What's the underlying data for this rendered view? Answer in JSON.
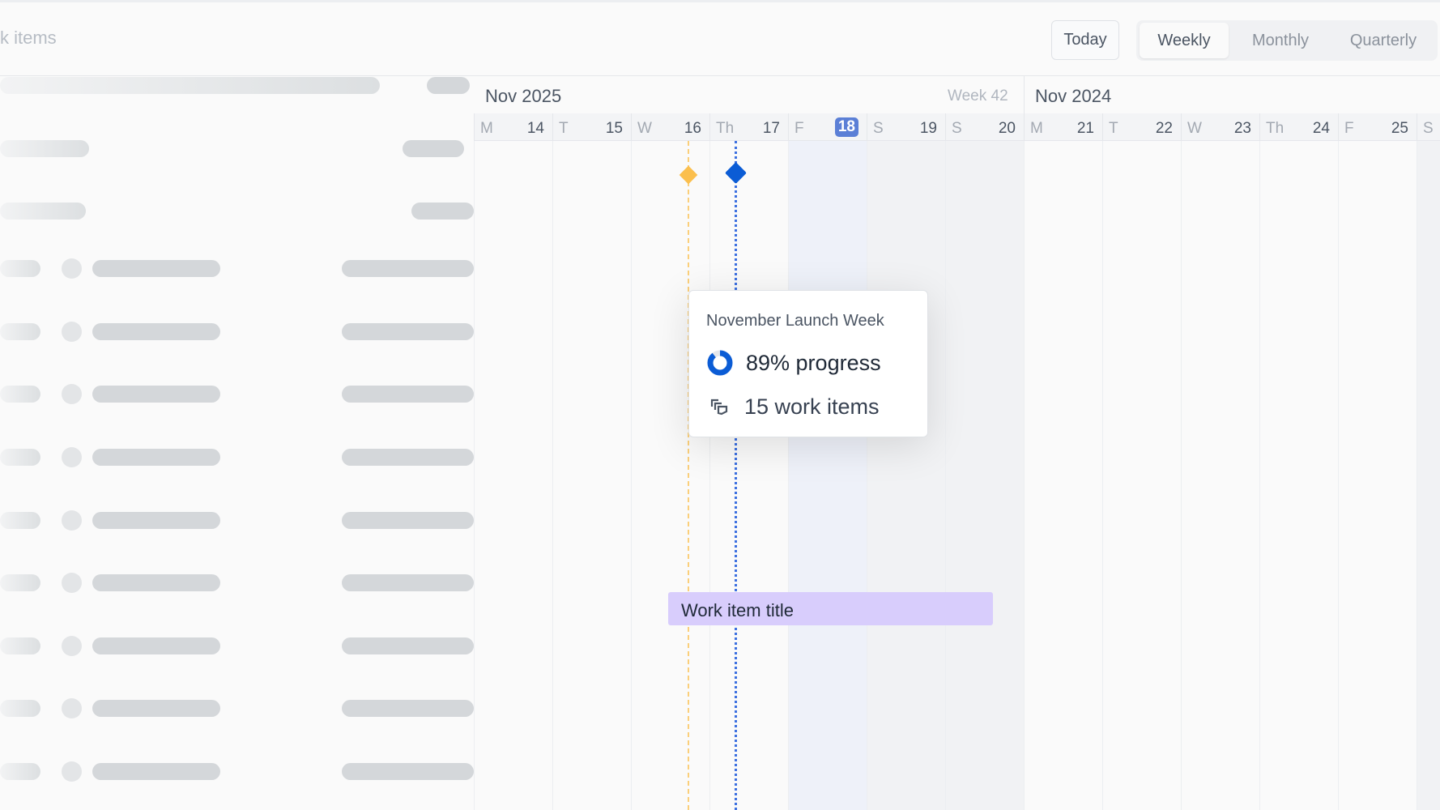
{
  "header": {
    "title": "k items",
    "today_label": "Today",
    "views": [
      "Weekly",
      "Monthly",
      "Quarterly"
    ],
    "active_view": "Weekly"
  },
  "timeline": {
    "months": [
      {
        "label": "Nov 2025",
        "week": "Week 42"
      },
      {
        "label": "Nov 2024"
      }
    ],
    "days": [
      {
        "letter": "M",
        "num": "14"
      },
      {
        "letter": "T",
        "num": "15"
      },
      {
        "letter": "W",
        "num": "16"
      },
      {
        "letter": "Th",
        "num": "17"
      },
      {
        "letter": "F",
        "num": "18",
        "today": true
      },
      {
        "letter": "S",
        "num": "19"
      },
      {
        "letter": "S",
        "num": "20"
      },
      {
        "letter": "M",
        "num": "21"
      },
      {
        "letter": "T",
        "num": "22"
      },
      {
        "letter": "W",
        "num": "23"
      },
      {
        "letter": "Th",
        "num": "24"
      },
      {
        "letter": "F",
        "num": "25"
      },
      {
        "letter": "S",
        "num": ""
      }
    ]
  },
  "tooltip": {
    "title": "November Launch Week",
    "progress_value": 89,
    "progress_text": "89% progress",
    "items_text": "15 work items"
  },
  "work_item": {
    "title": "Work item title"
  },
  "colors": {
    "accent": "#0b5cd5",
    "milestone_orange": "#fbbf4d",
    "bar": "#d8cdfc",
    "today_badge": "#5b7fd6"
  }
}
